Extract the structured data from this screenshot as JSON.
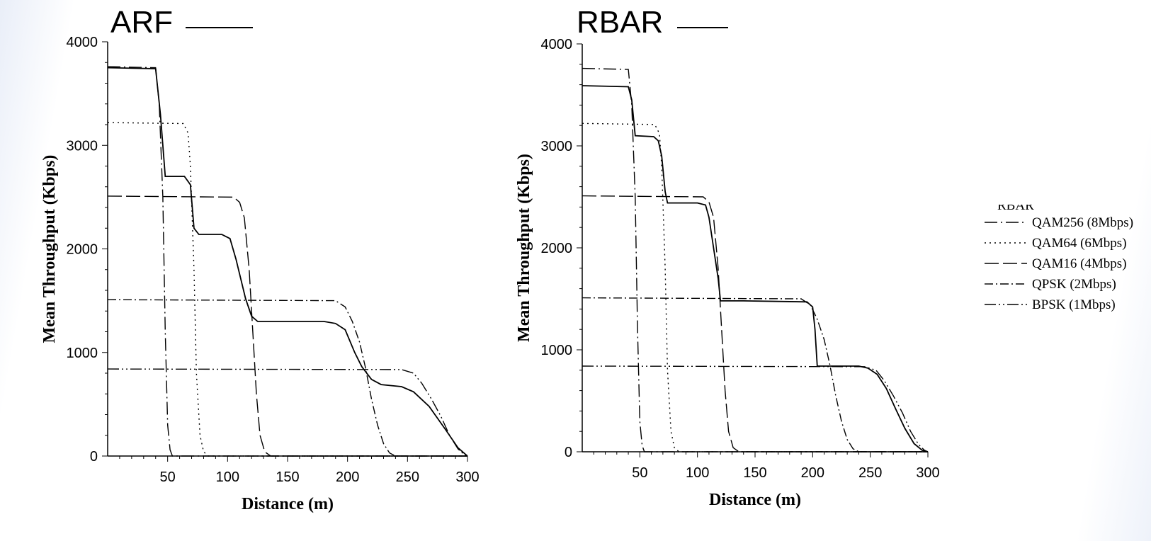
{
  "chart_data": [
    {
      "type": "line",
      "title": "ARF",
      "xlabel": "Distance (m)",
      "ylabel": "Mean Throughput (Kbps)",
      "xlim": [
        0,
        300
      ],
      "ylim": [
        0,
        4000
      ],
      "xticks": [
        50,
        100,
        150,
        200,
        250,
        300
      ],
      "yticks": [
        0,
        1000,
        2000,
        3000,
        4000
      ],
      "grid": false,
      "series": [
        {
          "name": "ARF",
          "values": [
            [
              0,
              3750
            ],
            [
              40,
              3740
            ],
            [
              44,
              3300
            ],
            [
              48,
              2700
            ],
            [
              64,
              2700
            ],
            [
              69,
              2620
            ],
            [
              72,
              2200
            ],
            [
              76,
              2140
            ],
            [
              95,
              2140
            ],
            [
              102,
              2100
            ],
            [
              107,
              1900
            ],
            [
              115,
              1520
            ],
            [
              120,
              1350
            ],
            [
              125,
              1300
            ],
            [
              140,
              1300
            ],
            [
              180,
              1300
            ],
            [
              190,
              1280
            ],
            [
              198,
              1220
            ],
            [
              206,
              1000
            ],
            [
              212,
              860
            ],
            [
              220,
              740
            ],
            [
              228,
              690
            ],
            [
              245,
              670
            ],
            [
              255,
              620
            ],
            [
              268,
              480
            ],
            [
              282,
              250
            ],
            [
              292,
              80
            ],
            [
              300,
              0
            ]
          ]
        },
        {
          "name": "QAM256 (8Mbps)",
          "values": [
            [
              0,
              3760
            ],
            [
              40,
              3750
            ],
            [
              43,
              3400
            ],
            [
              46,
              2500
            ],
            [
              48,
              1200
            ],
            [
              50,
              300
            ],
            [
              52,
              60
            ],
            [
              54,
              0
            ],
            [
              300,
              0
            ]
          ]
        },
        {
          "name": "QAM64 (6Mbps)",
          "values": [
            [
              0,
              3220
            ],
            [
              63,
              3210
            ],
            [
              67,
              3120
            ],
            [
              69,
              2800
            ],
            [
              72,
              1800
            ],
            [
              74,
              800
            ],
            [
              77,
              200
            ],
            [
              80,
              40
            ],
            [
              84,
              0
            ],
            [
              300,
              0
            ]
          ]
        },
        {
          "name": "QAM16 (4Mbps)",
          "values": [
            [
              0,
              2510
            ],
            [
              105,
              2500
            ],
            [
              110,
              2450
            ],
            [
              114,
              2300
            ],
            [
              118,
              1800
            ],
            [
              121,
              1200
            ],
            [
              124,
              600
            ],
            [
              127,
              200
            ],
            [
              131,
              40
            ],
            [
              136,
              0
            ],
            [
              300,
              0
            ]
          ]
        },
        {
          "name": "QPSK (2Mbps)",
          "values": [
            [
              0,
              1510
            ],
            [
              190,
              1500
            ],
            [
              198,
              1440
            ],
            [
              204,
              1300
            ],
            [
              210,
              1100
            ],
            [
              215,
              850
            ],
            [
              220,
              550
            ],
            [
              225,
              300
            ],
            [
              230,
              120
            ],
            [
              235,
              30
            ],
            [
              240,
              0
            ],
            [
              300,
              0
            ]
          ]
        },
        {
          "name": "BPSK (1Mbps)",
          "values": [
            [
              0,
              840
            ],
            [
              245,
              835
            ],
            [
              255,
              800
            ],
            [
              262,
              700
            ],
            [
              270,
              550
            ],
            [
              278,
              380
            ],
            [
              285,
              200
            ],
            [
              292,
              70
            ],
            [
              297,
              15
            ],
            [
              300,
              0
            ]
          ]
        }
      ]
    },
    {
      "type": "line",
      "title": "RBAR",
      "xlabel": "Distance (m)",
      "ylabel": "Mean Throughput (Kbps)",
      "xlim": [
        0,
        300
      ],
      "ylim": [
        0,
        4000
      ],
      "xticks": [
        50,
        100,
        150,
        200,
        250,
        300
      ],
      "yticks": [
        0,
        1000,
        2000,
        3000,
        4000
      ],
      "grid": false,
      "series": [
        {
          "name": "RBAR",
          "values": [
            [
              0,
              3590
            ],
            [
              40,
              3580
            ],
            [
              43,
              3450
            ],
            [
              46,
              3100
            ],
            [
              62,
              3090
            ],
            [
              66,
              3050
            ],
            [
              69,
              2900
            ],
            [
              72,
              2550
            ],
            [
              74,
              2440
            ],
            [
              100,
              2440
            ],
            [
              107,
              2420
            ],
            [
              110,
              2300
            ],
            [
              114,
              2000
            ],
            [
              118,
              1700
            ],
            [
              120,
              1480
            ],
            [
              140,
              1480
            ],
            [
              195,
              1470
            ],
            [
              200,
              1420
            ],
            [
              202,
              1200
            ],
            [
              204,
              840
            ],
            [
              240,
              840
            ],
            [
              248,
              820
            ],
            [
              256,
              760
            ],
            [
              264,
              620
            ],
            [
              272,
              420
            ],
            [
              280,
              230
            ],
            [
              288,
              80
            ],
            [
              295,
              15
            ],
            [
              300,
              0
            ]
          ]
        },
        {
          "name": "QAM256 (8Mbps)",
          "values": [
            [
              0,
              3760
            ],
            [
              40,
              3750
            ],
            [
              43,
              3400
            ],
            [
              46,
              2500
            ],
            [
              48,
              1200
            ],
            [
              50,
              300
            ],
            [
              52,
              60
            ],
            [
              54,
              0
            ],
            [
              300,
              0
            ]
          ]
        },
        {
          "name": "QAM64 (6Mbps)",
          "values": [
            [
              0,
              3220
            ],
            [
              63,
              3210
            ],
            [
              67,
              3120
            ],
            [
              69,
              2800
            ],
            [
              72,
              1800
            ],
            [
              74,
              800
            ],
            [
              77,
              200
            ],
            [
              80,
              40
            ],
            [
              84,
              0
            ],
            [
              300,
              0
            ]
          ]
        },
        {
          "name": "QAM16 (4Mbps)",
          "values": [
            [
              0,
              2510
            ],
            [
              105,
              2500
            ],
            [
              110,
              2450
            ],
            [
              114,
              2300
            ],
            [
              118,
              1800
            ],
            [
              121,
              1200
            ],
            [
              124,
              600
            ],
            [
              127,
              200
            ],
            [
              131,
              40
            ],
            [
              136,
              0
            ],
            [
              300,
              0
            ]
          ]
        },
        {
          "name": "QPSK (2Mbps)",
          "values": [
            [
              0,
              1510
            ],
            [
              190,
              1500
            ],
            [
              198,
              1440
            ],
            [
              204,
              1300
            ],
            [
              210,
              1100
            ],
            [
              215,
              850
            ],
            [
              220,
              550
            ],
            [
              225,
              300
            ],
            [
              230,
              120
            ],
            [
              235,
              30
            ],
            [
              240,
              0
            ],
            [
              300,
              0
            ]
          ]
        },
        {
          "name": "BPSK (1Mbps)",
          "values": [
            [
              0,
              840
            ],
            [
              245,
              835
            ],
            [
              255,
              800
            ],
            [
              262,
              700
            ],
            [
              270,
              550
            ],
            [
              278,
              380
            ],
            [
              285,
              200
            ],
            [
              292,
              70
            ],
            [
              297,
              15
            ],
            [
              300,
              0
            ]
          ]
        }
      ]
    }
  ],
  "legend": {
    "placement": "right",
    "cut_off_label": "RBAR",
    "entries": [
      {
        "label": "QAM256 (8Mbps)",
        "style": "dash-dot-long"
      },
      {
        "label": "QAM64 (6Mbps)",
        "style": "dotted"
      },
      {
        "label": "QAM16 (4Mbps)",
        "style": "long-dash"
      },
      {
        "label": "QPSK (2Mbps)",
        "style": "dash-dot"
      },
      {
        "label": "BPSK (1Mbps)",
        "style": "dash-dot-dot"
      }
    ]
  },
  "colors": {
    "line": "#000000",
    "background": "#ffffff"
  }
}
